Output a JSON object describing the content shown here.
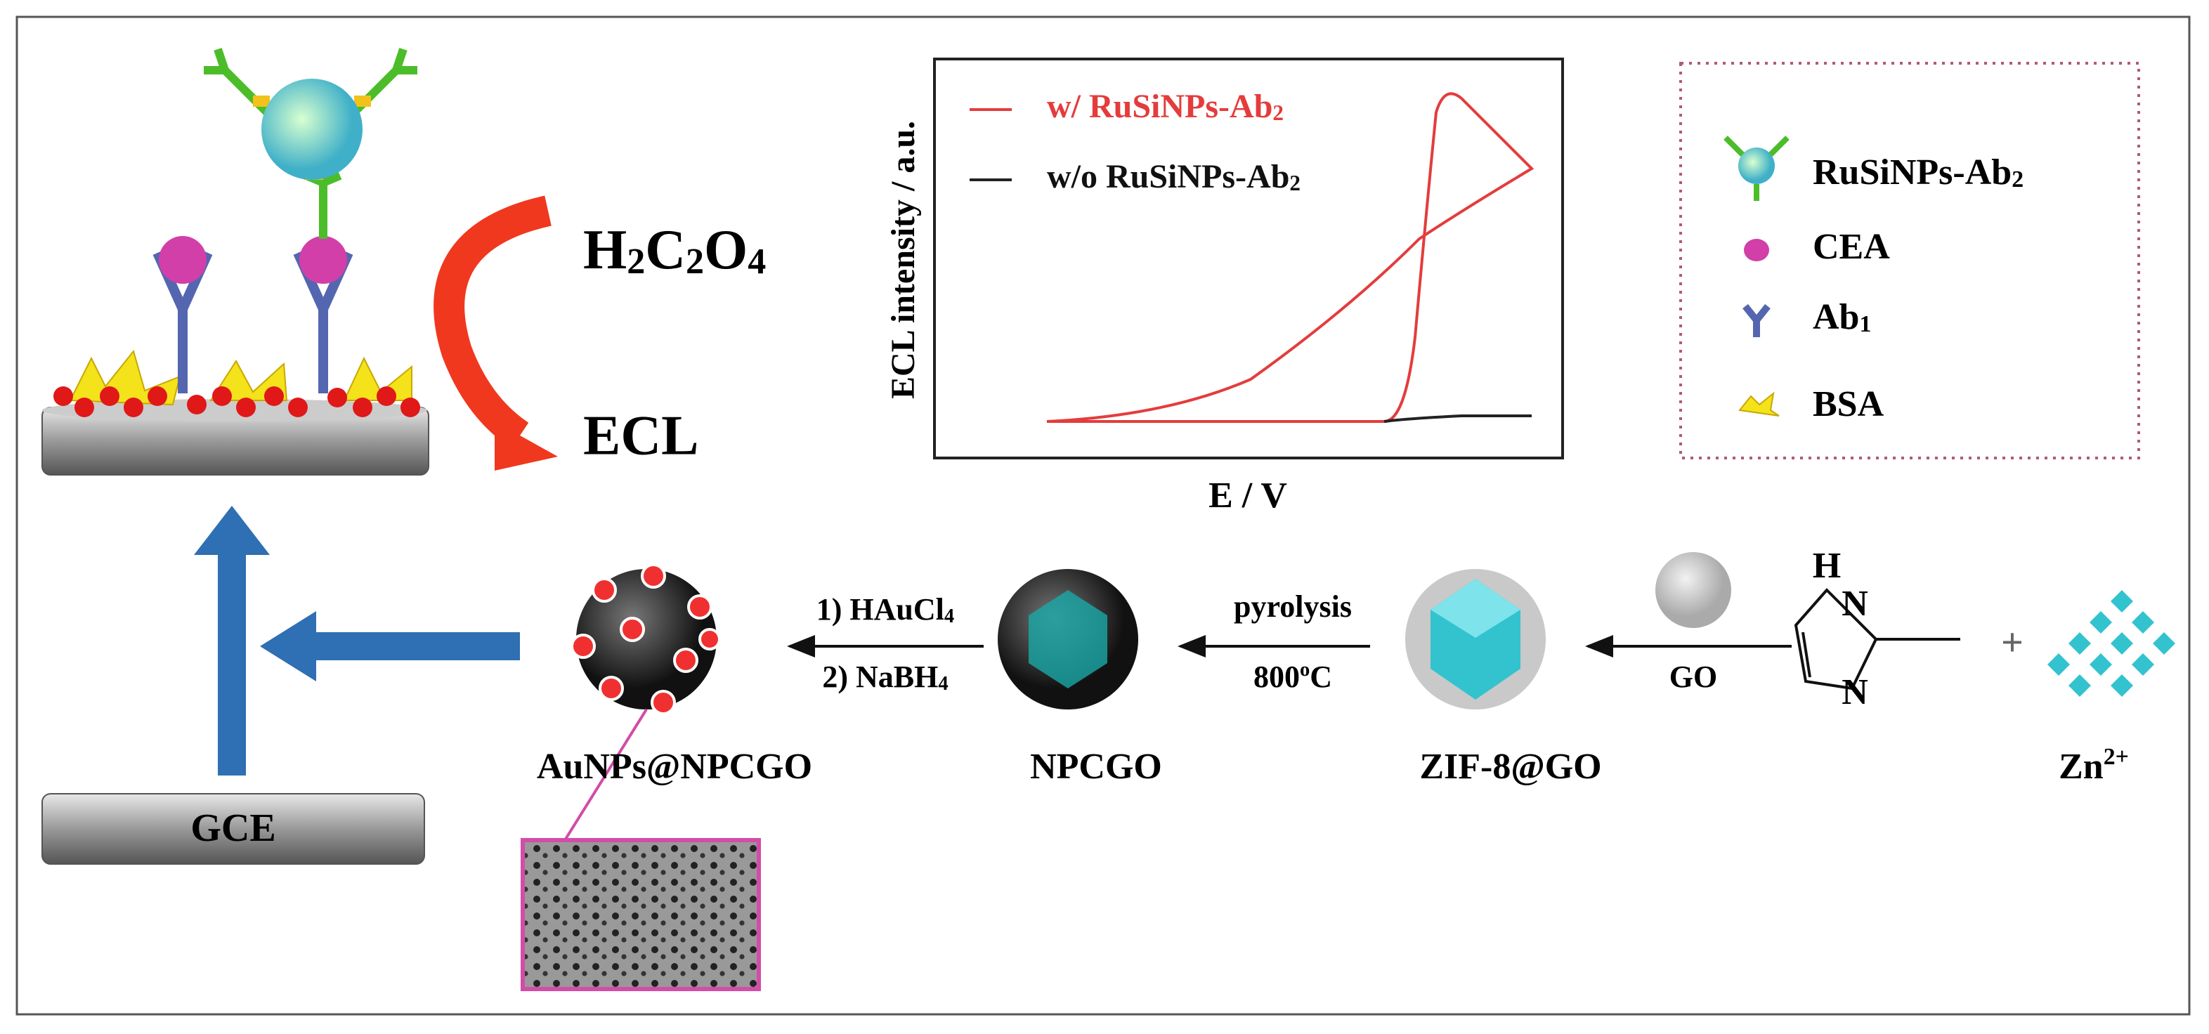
{
  "electrode": {
    "label": "GCE"
  },
  "reaction": {
    "reagent": [
      "H",
      {
        "sub": "2"
      },
      "C",
      {
        "sub": "2"
      },
      "O",
      {
        "sub": "4"
      }
    ],
    "product": "ECL"
  },
  "inset_plot": {
    "y_label": "ECL intensity / a.u.",
    "x_label": "E / V",
    "legend": [
      [
        "w/ RuSiNPs-Ab",
        {
          "sub": "2"
        }
      ],
      [
        "w/o RuSiNPs-Ab",
        {
          "sub": "2"
        }
      ]
    ]
  },
  "key": [
    [
      "RuSiNPs-Ab",
      {
        "sub": "2"
      }
    ],
    [
      "CEA"
    ],
    [
      "Ab",
      {
        "sub": "1"
      }
    ],
    [
      "BSA"
    ]
  ],
  "synthesis": {
    "materials": [
      [
        "AuNPs@NPCGO"
      ],
      [
        "NPCGO"
      ],
      [
        "ZIF-8@GO"
      ],
      [
        "Zn",
        {
          "sup": "2+"
        }
      ]
    ],
    "steps": [
      [
        [
          "1) HAuCl",
          {
            "sub": "4"
          }
        ],
        [
          "2) NaBH",
          {
            "sub": "4"
          }
        ]
      ],
      [
        [
          "pyrolysis"
        ],
        [
          "800",
          {
            "sup": "o"
          },
          "C"
        ]
      ],
      [
        [
          "GO"
        ]
      ]
    ],
    "imidazole_atoms": [
      "H",
      "N",
      "N"
    ],
    "plus": "+"
  }
}
